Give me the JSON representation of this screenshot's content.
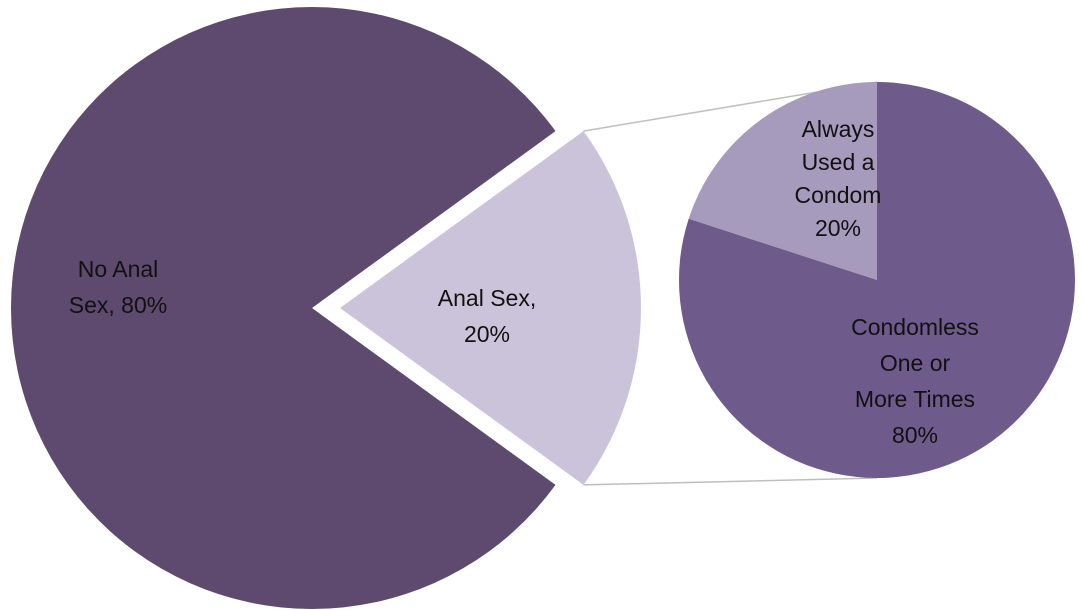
{
  "chart_data": {
    "type": "pie",
    "subtype": "pie-of-pie",
    "main": {
      "slices": [
        {
          "name": "No Anal Sex",
          "value": 80,
          "label_lines": [
            "No Anal",
            "Sex, 80%"
          ],
          "color": "#5e4a6f"
        },
        {
          "name": "Anal Sex",
          "value": 20,
          "label_lines": [
            "Anal Sex,",
            "20%"
          ],
          "color": "#cbc3d9",
          "exploded": true
        }
      ]
    },
    "secondary": {
      "breakdown_of": "Anal Sex",
      "slices": [
        {
          "name": "Always Used a Condom",
          "value": 20,
          "label_lines": [
            "Always",
            "Used a",
            "Condom",
            "20%"
          ],
          "color": "#a69abd"
        },
        {
          "name": "Condomless One or More Times",
          "value": 80,
          "label_lines": [
            "Condomless",
            "One or",
            "More Times",
            "80%"
          ],
          "color": "#6e5a8b"
        }
      ]
    },
    "connector_color": "#bfbfbf"
  }
}
